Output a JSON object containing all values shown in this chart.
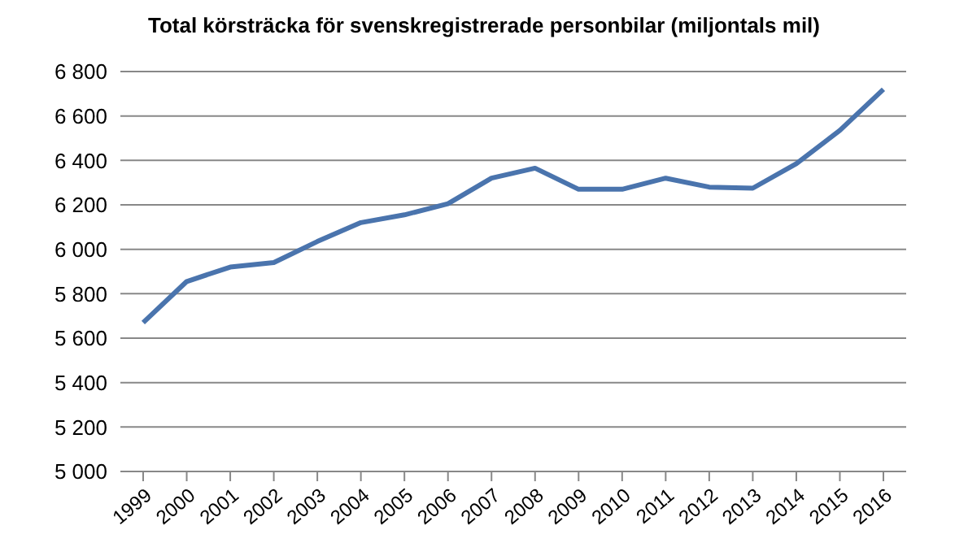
{
  "chart_data": {
    "type": "line",
    "title": "Total körsträcka för svenskregistrerade personbilar (miljontals mil)",
    "categories": [
      "1999",
      "2000",
      "2001",
      "2002",
      "2003",
      "2004",
      "2005",
      "2006",
      "2007",
      "2008",
      "2009",
      "2010",
      "2011",
      "2012",
      "2013",
      "2014",
      "2015",
      "2016"
    ],
    "series": [
      {
        "color": "#4a74ad",
        "values": [
          5670,
          5855,
          5920,
          5940,
          6035,
          6120,
          6155,
          6205,
          6320,
          6365,
          6270,
          6270,
          6320,
          6280,
          6275,
          6385,
          6535,
          6720
        ]
      }
    ],
    "ylim": [
      5000,
      6800
    ],
    "yticks": [
      {
        "value": 5000,
        "label": "5 000"
      },
      {
        "value": 5200,
        "label": "5 200"
      },
      {
        "value": 5400,
        "label": "5 400"
      },
      {
        "value": 5600,
        "label": "5 600"
      },
      {
        "value": 5800,
        "label": "5 800"
      },
      {
        "value": 6000,
        "label": "6 000"
      },
      {
        "value": 6200,
        "label": "6 200"
      },
      {
        "value": 6400,
        "label": "6 400"
      },
      {
        "value": 6600,
        "label": "6 600"
      },
      {
        "value": 6800,
        "label": "6 800"
      }
    ],
    "grid": "y",
    "legend": false,
    "marker": "none",
    "line_style": "solid"
  }
}
